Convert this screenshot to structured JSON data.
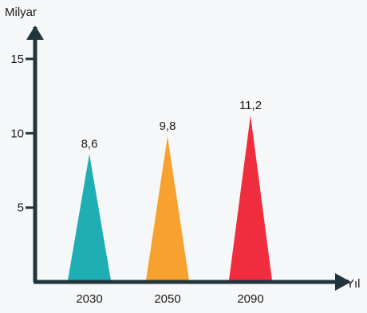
{
  "chart_data": {
    "type": "bar",
    "title": "",
    "xlabel": "Yıl",
    "ylabel": "Milyar",
    "categories": [
      "2030",
      "2050",
      "2090"
    ],
    "values": [
      8.6,
      9.8,
      11.2
    ],
    "value_labels": [
      "8,6",
      "9,8",
      "11,2"
    ],
    "colors": [
      "#1faeb4",
      "#f7a12e",
      "#ef2d3f"
    ],
    "ylim": [
      0,
      15
    ],
    "yticks": [
      5,
      10,
      15
    ],
    "ytick_labels": [
      "5",
      "10",
      "15"
    ],
    "mark_shape": "triangle",
    "grid": false,
    "axis_color": "#22353c"
  }
}
